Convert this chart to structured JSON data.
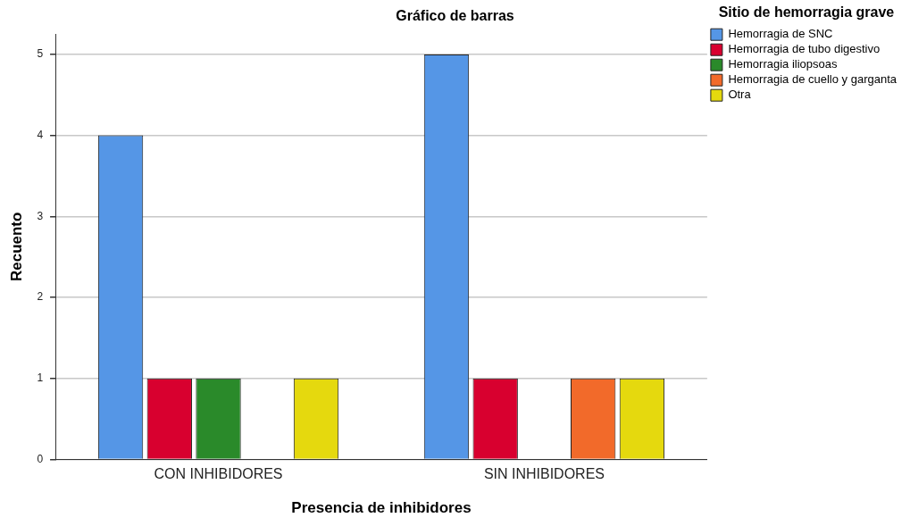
{
  "chart_data": {
    "type": "bar",
    "title": "Gráfico de barras",
    "xlabel": "Presencia de inhibidores",
    "ylabel": "Recuento",
    "legend_title": "Sitio de hemorragia grave",
    "categories": [
      "CON INHIBIDORES",
      "SIN INHIBIDORES"
    ],
    "series": [
      {
        "name": "Hemorragia de SNC",
        "color": "#5596e6",
        "values": [
          4,
          5
        ]
      },
      {
        "name": "Hemorragia de tubo digestivo",
        "color": "#d8002f",
        "values": [
          1,
          1
        ]
      },
      {
        "name": "Hemorragia iliopsoas",
        "color": "#2a8a2a",
        "values": [
          1,
          null
        ]
      },
      {
        "name": "Hemorragia de cuello y garganta",
        "color": "#f26a2a",
        "values": [
          null,
          1
        ]
      },
      {
        "name": "Otra",
        "color": "#e5d90e",
        "values": [
          1,
          1
        ]
      }
    ],
    "ylim": [
      0,
      5.25
    ],
    "yticks": [
      0,
      1,
      2,
      3,
      4,
      5
    ],
    "grid": "y",
    "legend": "top right"
  }
}
